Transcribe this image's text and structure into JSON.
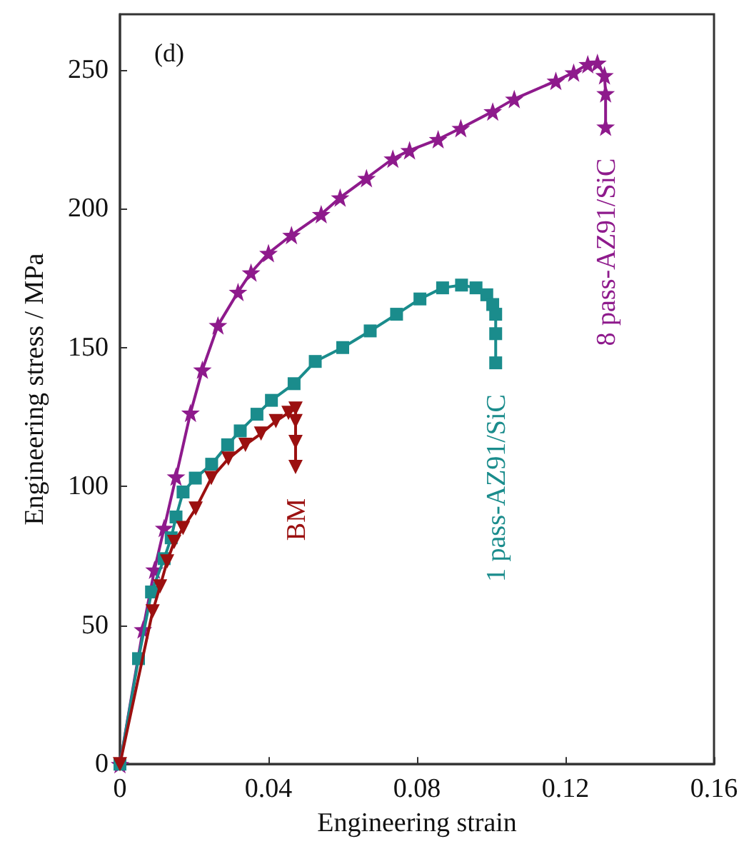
{
  "chart_data": {
    "type": "line",
    "xlabel": "Engineering strain",
    "ylabel": "Engineering stress / MPa",
    "annotations": [
      "(d)"
    ],
    "xlim": [
      0,
      0.16
    ],
    "xticks": [
      0,
      0.04,
      0.08,
      0.12,
      0.16
    ],
    "ylim": [
      0,
      270
    ],
    "yticks": [
      0,
      50,
      100,
      150,
      200,
      250
    ],
    "grid": false,
    "legend": false,
    "series": [
      {
        "name": "8 pass-AZ91/SiC",
        "color": "#8e1a8c",
        "marker": "star",
        "x": [
          0,
          0.0062,
          0.0093,
          0.0119,
          0.0151,
          0.019,
          0.0222,
          0.0264,
          0.0318,
          0.0353,
          0.04,
          0.0462,
          0.0542,
          0.0593,
          0.0664,
          0.0735,
          0.078,
          0.0857,
          0.0918,
          0.1004,
          0.1062,
          0.1174,
          0.1222,
          0.126,
          0.1286,
          0.1305,
          0.1308,
          0.1308
        ],
        "values": [
          0,
          48.5,
          70,
          85,
          103.5,
          126.5,
          142,
          158,
          170,
          177,
          184,
          190.5,
          198,
          204,
          211,
          218,
          221,
          225,
          229,
          235,
          239.5,
          246,
          249,
          252,
          252.5,
          248,
          241.5,
          229.5
        ]
      },
      {
        "name": "1 pass-AZ91/SiC",
        "color": "#1a8c8c",
        "marker": "square",
        "x": [
          0,
          0.005,
          0.0085,
          0.0119,
          0.0138,
          0.0151,
          0.017,
          0.0203,
          0.0247,
          0.029,
          0.0324,
          0.0369,
          0.0408,
          0.0469,
          0.0526,
          0.06,
          0.0674,
          0.0745,
          0.0808,
          0.0869,
          0.092,
          0.0959,
          0.0988,
          0.1004,
          0.1012,
          0.1012,
          0.1012
        ],
        "values": [
          0,
          38,
          62,
          74,
          81.5,
          89,
          98,
          103,
          108,
          115,
          120,
          126,
          131,
          137,
          145,
          150,
          156,
          162,
          167.5,
          171.5,
          172.5,
          171.5,
          169,
          165.5,
          162,
          155,
          144.5
        ]
      },
      {
        "name": "BM",
        "color": "#9b1010",
        "marker": "triangle",
        "x": [
          0,
          0.0088,
          0.0108,
          0.0127,
          0.0146,
          0.017,
          0.0204,
          0.0246,
          0.0292,
          0.0338,
          0.038,
          0.042,
          0.0454,
          0.0473,
          0.0473,
          0.0473,
          0.0473
        ],
        "values": [
          0,
          55,
          64,
          73,
          80,
          85,
          92,
          103,
          110,
          115,
          119,
          123.5,
          126.5,
          128,
          123.5,
          116,
          107
        ]
      }
    ]
  }
}
